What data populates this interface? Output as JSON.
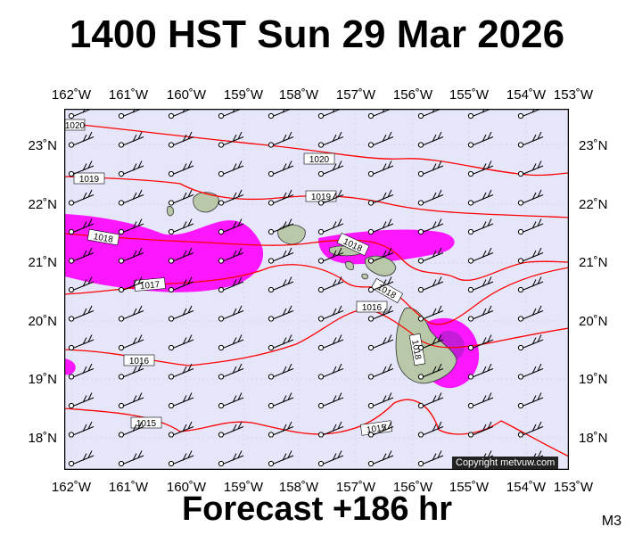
{
  "title": "1400 HST Sun 29 Mar 2026",
  "footer": "Forecast +186 hr",
  "model_tag": "M3",
  "copyright": "Copyright metvuw.com",
  "lon_labels": [
    "162˚W",
    "161˚W",
    "160˚W",
    "159˚W",
    "158˚W",
    "157˚W",
    "156˚W",
    "155˚W",
    "154˚W",
    "153˚W"
  ],
  "lat_labels": [
    "23˚N",
    "22˚N",
    "21˚N",
    "20˚N",
    "19˚N",
    "18˚N"
  ],
  "isobars": [
    {
      "value": "1020",
      "label": "1020"
    },
    {
      "value": "1019",
      "label": "1019"
    },
    {
      "value": "1018",
      "label": "1018"
    },
    {
      "value": "1017",
      "label": "1017"
    },
    {
      "value": "1016",
      "label": "1016"
    },
    {
      "value": "1015",
      "label": "1015"
    }
  ],
  "colors": {
    "sea": "#e6e6fb",
    "isobar": "#ff0000",
    "rain_heavy": "#ff00ff",
    "rain_light": "#ee88ee",
    "land": "#b9c8a8",
    "barb": "#000000"
  }
}
